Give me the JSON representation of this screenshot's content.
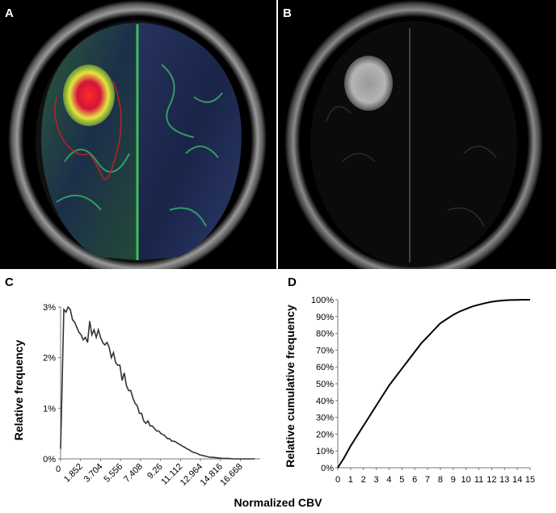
{
  "panels": {
    "a": "A",
    "b": "B",
    "c": "C",
    "d": "D"
  },
  "shared_xlabel": "Normalized CBV",
  "chart_data": [
    {
      "type": "line",
      "panel": "C",
      "title": "",
      "xlabel": "Normalized CBV",
      "ylabel": "Relative frequency",
      "xlim": [
        0,
        18.5
      ],
      "ylim": [
        0,
        3
      ],
      "y_ticks": [
        "0%",
        "1%",
        "2%",
        "3%"
      ],
      "x_ticks": [
        "0",
        "1.852",
        "3.704",
        "5.556",
        "7.408",
        "9.26",
        "11.112",
        "12.964",
        "14.816",
        "16.668"
      ],
      "x_tick_values": [
        0,
        1.852,
        3.704,
        5.556,
        7.408,
        9.26,
        11.112,
        12.964,
        14.816,
        16.668
      ],
      "grid": false,
      "series": [
        {
          "x": [
            0,
            0.3,
            0.5,
            0.7,
            0.9,
            1.1,
            1.3,
            1.5,
            1.7,
            1.9,
            2.1,
            2.3,
            2.5,
            2.7,
            2.9,
            3.1,
            3.3,
            3.5,
            3.7,
            3.9,
            4.1,
            4.3,
            4.5,
            4.7,
            4.9,
            5.1,
            5.3,
            5.5,
            5.7,
            5.9,
            6.1,
            6.3,
            6.5,
            6.7,
            6.9,
            7.1,
            7.3,
            7.5,
            7.7,
            7.9,
            8.1,
            8.3,
            8.5,
            8.7,
            8.9,
            9.1,
            9.3,
            9.5,
            9.7,
            9.9,
            10.1,
            10.3,
            10.5,
            10.7,
            10.9,
            11.1,
            11.3,
            11.5,
            11.7,
            11.9,
            12.1,
            12.3,
            12.5,
            12.7,
            12.9,
            13.1,
            13.3,
            13.5,
            13.7,
            13.9,
            14.1,
            14.5,
            15.0,
            15.5,
            16.0,
            16.5,
            17.0,
            17.5,
            18.0
          ],
          "values": [
            0.2,
            2.95,
            2.9,
            3.0,
            2.95,
            2.75,
            2.7,
            2.6,
            2.5,
            2.45,
            2.35,
            2.4,
            2.3,
            2.72,
            2.45,
            2.55,
            2.4,
            2.55,
            2.4,
            2.3,
            2.25,
            2.3,
            2.2,
            2.0,
            2.1,
            1.9,
            1.85,
            1.85,
            1.55,
            1.7,
            1.45,
            1.35,
            1.35,
            1.2,
            1.1,
            1.05,
            0.9,
            0.9,
            0.75,
            0.7,
            0.75,
            0.65,
            0.65,
            0.6,
            0.55,
            0.55,
            0.5,
            0.48,
            0.45,
            0.4,
            0.4,
            0.35,
            0.35,
            0.33,
            0.3,
            0.28,
            0.25,
            0.23,
            0.2,
            0.18,
            0.15,
            0.13,
            0.12,
            0.1,
            0.08,
            0.07,
            0.06,
            0.05,
            0.04,
            0.03,
            0.03,
            0.02,
            0.01,
            0.01,
            0.0,
            0.0,
            0.0,
            0.0,
            0.0
          ]
        }
      ]
    },
    {
      "type": "line",
      "panel": "D",
      "title": "",
      "xlabel": "",
      "ylabel": "Relative cumulative frequency",
      "xlim": [
        0,
        15
      ],
      "ylim": [
        0,
        100
      ],
      "y_ticks": [
        "0%",
        "10%",
        "20%",
        "30%",
        "40%",
        "50%",
        "60%",
        "70%",
        "80%",
        "90%",
        "100%"
      ],
      "x_ticks": [
        "0",
        "1",
        "2",
        "3",
        "4",
        "5",
        "6",
        "7",
        "8",
        "9",
        "10",
        "11",
        "12",
        "13",
        "14",
        "15"
      ],
      "grid": false,
      "series": [
        {
          "x": [
            0,
            0.5,
            1,
            1.5,
            2,
            2.5,
            3,
            3.5,
            4,
            4.5,
            5,
            5.5,
            6,
            6.5,
            7,
            7.5,
            8,
            8.5,
            9,
            9.5,
            10,
            10.5,
            11,
            11.5,
            12,
            12.5,
            13,
            13.5,
            14,
            14.5,
            15
          ],
          "values": [
            0,
            6,
            13,
            19,
            25,
            31,
            37,
            43,
            49,
            54,
            59,
            64,
            69,
            74,
            78,
            82,
            86,
            88.5,
            91,
            93,
            94.5,
            96,
            97,
            98,
            98.8,
            99.3,
            99.6,
            99.8,
            99.9,
            100,
            100
          ]
        }
      ]
    }
  ]
}
